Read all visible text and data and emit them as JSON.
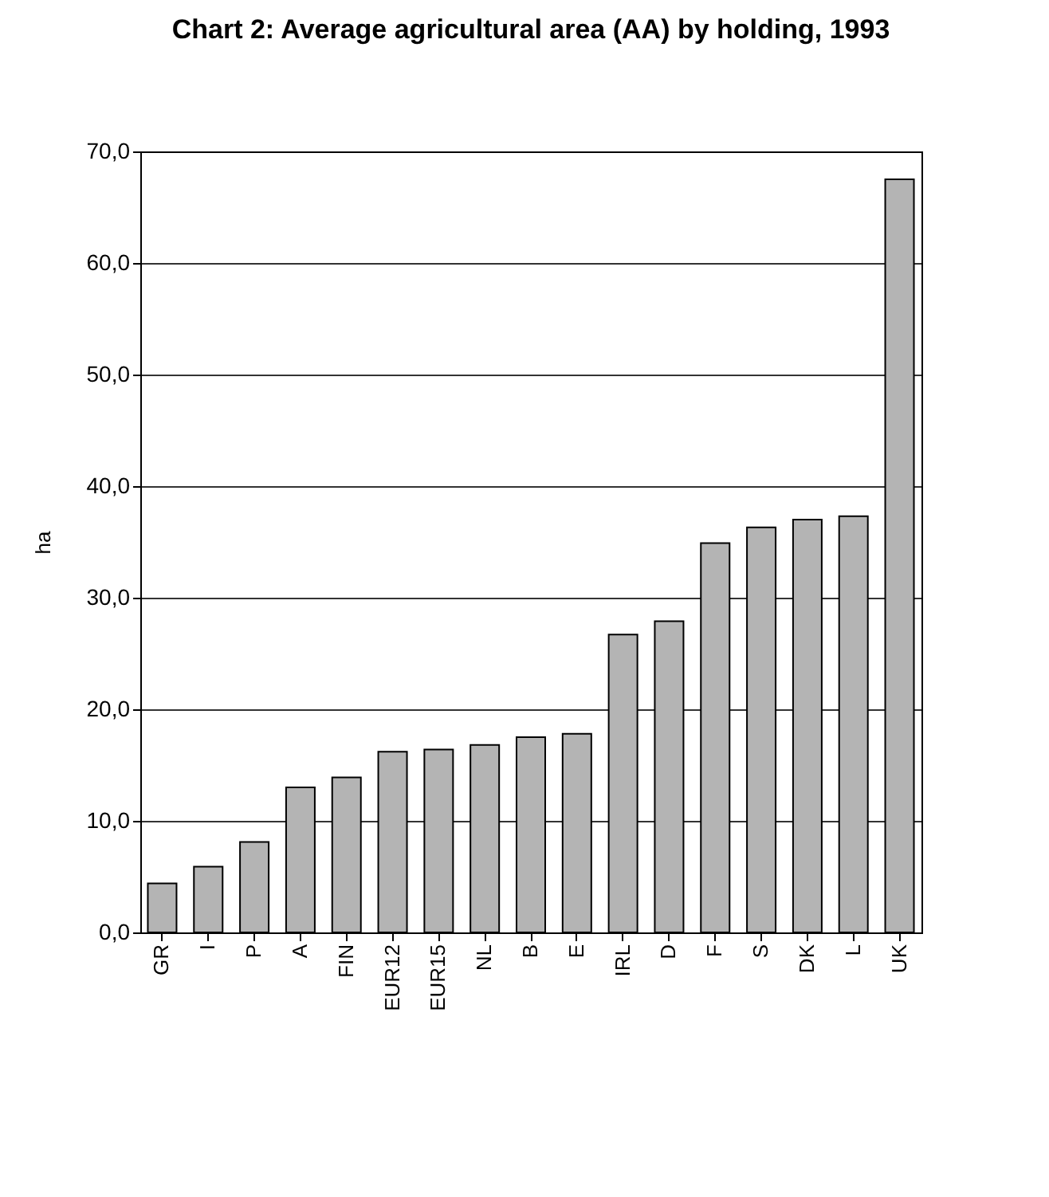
{
  "chart_data": {
    "type": "bar",
    "title": "Chart 2: Average agricultural area (AA) by holding, 1993",
    "ylabel": "ha",
    "categories": [
      "GR",
      "I",
      "P",
      "A",
      "FIN",
      "EUR12",
      "EUR15",
      "NL",
      "B",
      "E",
      "IRL",
      "D",
      "F",
      "S",
      "DK",
      "L",
      "UK"
    ],
    "values": [
      4.4,
      5.9,
      8.1,
      13.0,
      13.9,
      16.2,
      16.4,
      16.8,
      17.5,
      17.8,
      26.7,
      27.9,
      34.9,
      36.3,
      37.0,
      37.3,
      67.5
    ],
    "color": "#b4b4b4",
    "ylim": [
      0,
      70
    ],
    "yticks": [
      {
        "value": 0,
        "label": "0,0"
      },
      {
        "value": 10,
        "label": "10,0"
      },
      {
        "value": 20,
        "label": "20,0"
      },
      {
        "value": 30,
        "label": "30,0"
      },
      {
        "value": 40,
        "label": "40,0"
      },
      {
        "value": 50,
        "label": "50,0"
      },
      {
        "value": 60,
        "label": "60,0"
      },
      {
        "value": 70,
        "label": "70,0"
      }
    ],
    "grid": "y"
  }
}
